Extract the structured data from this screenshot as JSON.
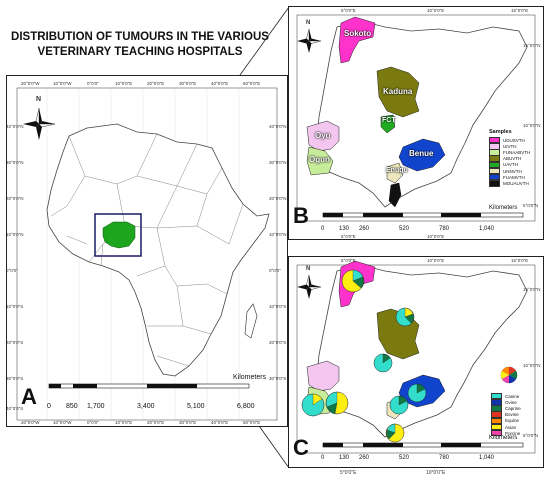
{
  "title_line1": "DISTRIBUTION OF TUMOURS IN THE VARIOUS",
  "title_line2": "VETERINARY TEACHING HOSPITALS",
  "panels": {
    "a": {
      "letter": "A",
      "compass": "N",
      "units": "Kilometers",
      "scale_ticks": [
        "0",
        "850",
        "1,700",
        "3,400",
        "5,100",
        "6,800"
      ],
      "lon_ticks": [
        "20°0'0\"W",
        "10°0'0\"W",
        "0°0'0\"",
        "10°0'0\"E",
        "20°0'0\"E",
        "30°0'0\"E",
        "40°0'0\"E",
        "50°0'0\"E"
      ],
      "lat_ticks": [
        "40°0'0\"N",
        "30°0'0\"N",
        "20°0'0\"N",
        "10°0'0\"N",
        "0°0'0\"",
        "10°0'0\"S",
        "20°0'0\"S",
        "30°0'0\"S",
        "40°0'0\"S"
      ]
    },
    "b": {
      "letter": "B",
      "compass": "N",
      "units": "Kilometers",
      "scale_ticks": [
        "0",
        "130",
        "260",
        "520",
        "780",
        "1,040"
      ],
      "top_ticks": [
        "5°0'0\"E",
        "10°0'0\"E",
        "15°0'0\"E"
      ],
      "bottom_ticks": [
        "5°0'0\"E",
        "10°0'0\"E"
      ],
      "lat_ticks": [
        "15°0'0\"N",
        "10°0'0\"N",
        "5°0'0\"N"
      ],
      "legend_title": "Samples",
      "legend": [
        {
          "label": "UDUSVTH",
          "color": "#ff33cc"
        },
        {
          "label": "UIVTH",
          "color": "#f2c6ee"
        },
        {
          "label": "FUNAABVTH",
          "color": "#c7ec9a"
        },
        {
          "label": "ABUVTH",
          "color": "#7a7a10"
        },
        {
          "label": "UAVTH",
          "color": "#22aa22"
        },
        {
          "label": "UNNVTH",
          "color": "#ede6bc"
        },
        {
          "label": "FUAMVTH",
          "color": "#1144cc"
        },
        {
          "label": "MOUAUVTH",
          "color": "#111111"
        }
      ],
      "regions": {
        "sokoto": "Sokoto",
        "kaduna": "Kaduna",
        "fct": "FCT",
        "oyo": "Oyo",
        "ogun": "Ogun",
        "benue": "Benue",
        "enugu": "Enugu"
      }
    },
    "c": {
      "letter": "C",
      "compass": "N",
      "units": "Kilometers",
      "scale_ticks": [
        "0",
        "130",
        "260",
        "520",
        "780",
        "1,040"
      ],
      "top_ticks": [
        "5°0'0\"E",
        "10°0'0\"E",
        "15°0'0\"E"
      ],
      "bottom_ticks": [
        "5°0'0\"E",
        "10°0'0\"E"
      ],
      "lat_ticks": [
        "15°0'0\"N",
        "10°0'0\"N",
        "5°0'0\"N"
      ],
      "legend": [
        {
          "label": "Canine",
          "color": "#33ddcc"
        },
        {
          "label": "Ovine",
          "color": "#1133aa"
        },
        {
          "label": "Caprine",
          "color": "#117744"
        },
        {
          "label": "Bovine",
          "color": "#dd3322"
        },
        {
          "label": "Equine",
          "color": "#ff8800"
        },
        {
          "label": "Avian",
          "color": "#ffee11"
        },
        {
          "label": "Porcine",
          "color": "#ee44aa"
        }
      ]
    }
  }
}
